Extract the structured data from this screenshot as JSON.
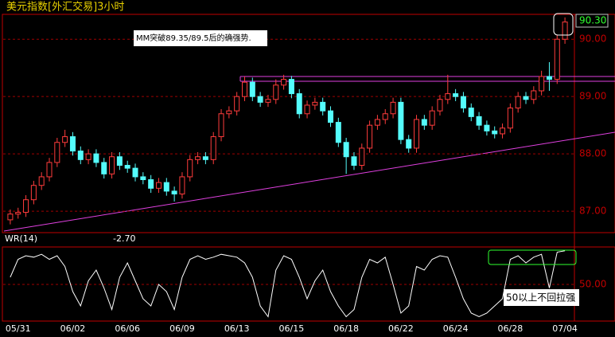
{
  "chart_data": [
    {
      "type": "candlestick",
      "title": "美元指数[外汇交易]3小时",
      "annotation": "MM突破89.35/89.5后的确强势.",
      "last_price": "90.30",
      "categories": [
        null,
        "05/31",
        null,
        null,
        null,
        null,
        null,
        null,
        "06/02",
        null,
        null,
        null,
        null,
        null,
        null,
        "06/06",
        null,
        null,
        null,
        null,
        null,
        null,
        "06/09",
        null,
        null,
        null,
        null,
        null,
        null,
        "06/13",
        null,
        null,
        null,
        null,
        null,
        null,
        "06/15",
        null,
        null,
        null,
        null,
        null,
        null,
        "06/18",
        null,
        null,
        null,
        null,
        null,
        null,
        "06/22",
        null,
        null,
        null,
        null,
        null,
        null,
        "06/24",
        null,
        null,
        null,
        null,
        null,
        null,
        "06/28",
        null,
        null,
        null,
        null,
        null,
        null,
        "07/04"
      ],
      "open": [
        86.85,
        86.95,
        86.98,
        87.2,
        87.45,
        87.6,
        87.85,
        88.2,
        88.3,
        88.05,
        87.9,
        88.0,
        87.85,
        87.65,
        87.95,
        87.8,
        87.75,
        87.6,
        87.55,
        87.4,
        87.5,
        87.35,
        87.3,
        87.6,
        87.9,
        87.95,
        87.9,
        88.3,
        88.7,
        88.75,
        89.0,
        89.25,
        89.0,
        88.9,
        88.95,
        89.2,
        89.3,
        89.05,
        88.7,
        88.85,
        88.9,
        88.75,
        88.55,
        88.2,
        87.95,
        87.8,
        88.1,
        88.5,
        88.6,
        88.7,
        88.9,
        88.25,
        88.1,
        88.6,
        88.5,
        88.75,
        88.95,
        89.05,
        89.0,
        88.8,
        88.65,
        88.5,
        88.4,
        88.35,
        88.45,
        88.8,
        89.0,
        88.95,
        89.1,
        89.35,
        89.3,
        90.0
      ],
      "high": [
        87.03,
        87.06,
        87.28,
        87.53,
        87.68,
        87.93,
        88.28,
        88.42,
        88.38,
        88.13,
        88.08,
        88.08,
        87.93,
        88.03,
        88.03,
        87.88,
        87.83,
        87.68,
        87.63,
        87.58,
        87.58,
        87.43,
        87.68,
        87.98,
        88.03,
        88.03,
        88.38,
        88.78,
        88.83,
        89.08,
        89.35,
        89.33,
        89.08,
        89.03,
        89.3,
        89.38,
        89.36,
        89.13,
        88.93,
        88.98,
        88.98,
        88.83,
        88.63,
        88.28,
        88.03,
        88.18,
        88.58,
        88.68,
        88.78,
        88.98,
        88.98,
        88.33,
        88.68,
        88.68,
        88.83,
        89.03,
        89.38,
        89.13,
        89.08,
        88.88,
        88.73,
        88.58,
        88.48,
        88.53,
        88.88,
        89.08,
        89.08,
        89.18,
        89.45,
        89.6,
        90.08,
        90.38
      ],
      "low": [
        86.77,
        86.87,
        86.9,
        87.12,
        87.37,
        87.52,
        87.77,
        88.12,
        87.97,
        87.82,
        87.82,
        87.77,
        87.57,
        87.57,
        87.72,
        87.67,
        87.52,
        87.47,
        87.32,
        87.32,
        87.27,
        87.17,
        87.22,
        87.52,
        87.82,
        87.82,
        87.82,
        88.22,
        88.62,
        88.67,
        88.92,
        88.92,
        88.82,
        88.82,
        88.87,
        89.12,
        88.97,
        88.62,
        88.62,
        88.77,
        88.67,
        88.47,
        88.12,
        87.65,
        87.72,
        87.72,
        88.02,
        88.42,
        88.52,
        88.62,
        88.17,
        88.02,
        88.02,
        88.42,
        88.42,
        88.67,
        88.87,
        88.92,
        88.72,
        88.57,
        88.42,
        88.32,
        88.27,
        88.27,
        88.37,
        88.72,
        88.87,
        88.87,
        89.02,
        89.1,
        89.22,
        89.92
      ],
      "close": [
        86.95,
        86.98,
        87.2,
        87.45,
        87.6,
        87.85,
        88.2,
        88.3,
        88.05,
        87.9,
        88.0,
        87.85,
        87.65,
        87.95,
        87.8,
        87.75,
        87.6,
        87.55,
        87.4,
        87.5,
        87.35,
        87.3,
        87.6,
        87.9,
        87.95,
        87.9,
        88.3,
        88.7,
        88.75,
        89.0,
        89.25,
        89.0,
        88.9,
        88.95,
        89.2,
        89.3,
        89.05,
        88.7,
        88.85,
        88.9,
        88.75,
        88.55,
        88.2,
        87.95,
        87.8,
        88.1,
        88.5,
        88.6,
        88.7,
        88.9,
        88.25,
        88.1,
        88.6,
        88.5,
        88.75,
        88.95,
        89.05,
        89.0,
        88.8,
        88.65,
        88.5,
        88.4,
        88.35,
        88.45,
        88.8,
        89.0,
        88.95,
        89.1,
        89.35,
        89.3,
        90.0,
        90.3
      ],
      "ylim": [
        86.64,
        90.42
      ],
      "yticks": [
        {
          "value": 87,
          "label": "87.00"
        },
        {
          "value": 88,
          "label": "88.00"
        },
        {
          "value": 89,
          "label": "89.00"
        },
        {
          "value": 90,
          "label": "90.00"
        }
      ],
      "up_color": "#ff3c3c",
      "down_color": "#54fcfc",
      "grid": true
    },
    {
      "type": "line",
      "name": "WR(14)",
      "current": "-2.70",
      "annotation": "50以上不回拉强",
      "color": "#ffffff",
      "values": [
        60,
        85,
        90,
        88,
        92,
        85,
        90,
        75,
        40,
        20,
        55,
        70,
        45,
        15,
        60,
        80,
        55,
        30,
        20,
        50,
        40,
        15,
        60,
        85,
        90,
        85,
        88,
        92,
        90,
        88,
        80,
        60,
        20,
        5,
        70,
        90,
        85,
        60,
        30,
        55,
        70,
        40,
        20,
        5,
        15,
        60,
        85,
        80,
        88,
        50,
        10,
        20,
        75,
        70,
        85,
        90,
        88,
        60,
        30,
        10,
        5,
        10,
        20,
        30,
        85,
        90,
        80,
        88,
        92,
        45,
        95,
        97
      ],
      "ylim": [
        0,
        100
      ],
      "yticks": [
        {
          "value": 50,
          "label": "50.00"
        }
      ],
      "grid": true
    }
  ]
}
